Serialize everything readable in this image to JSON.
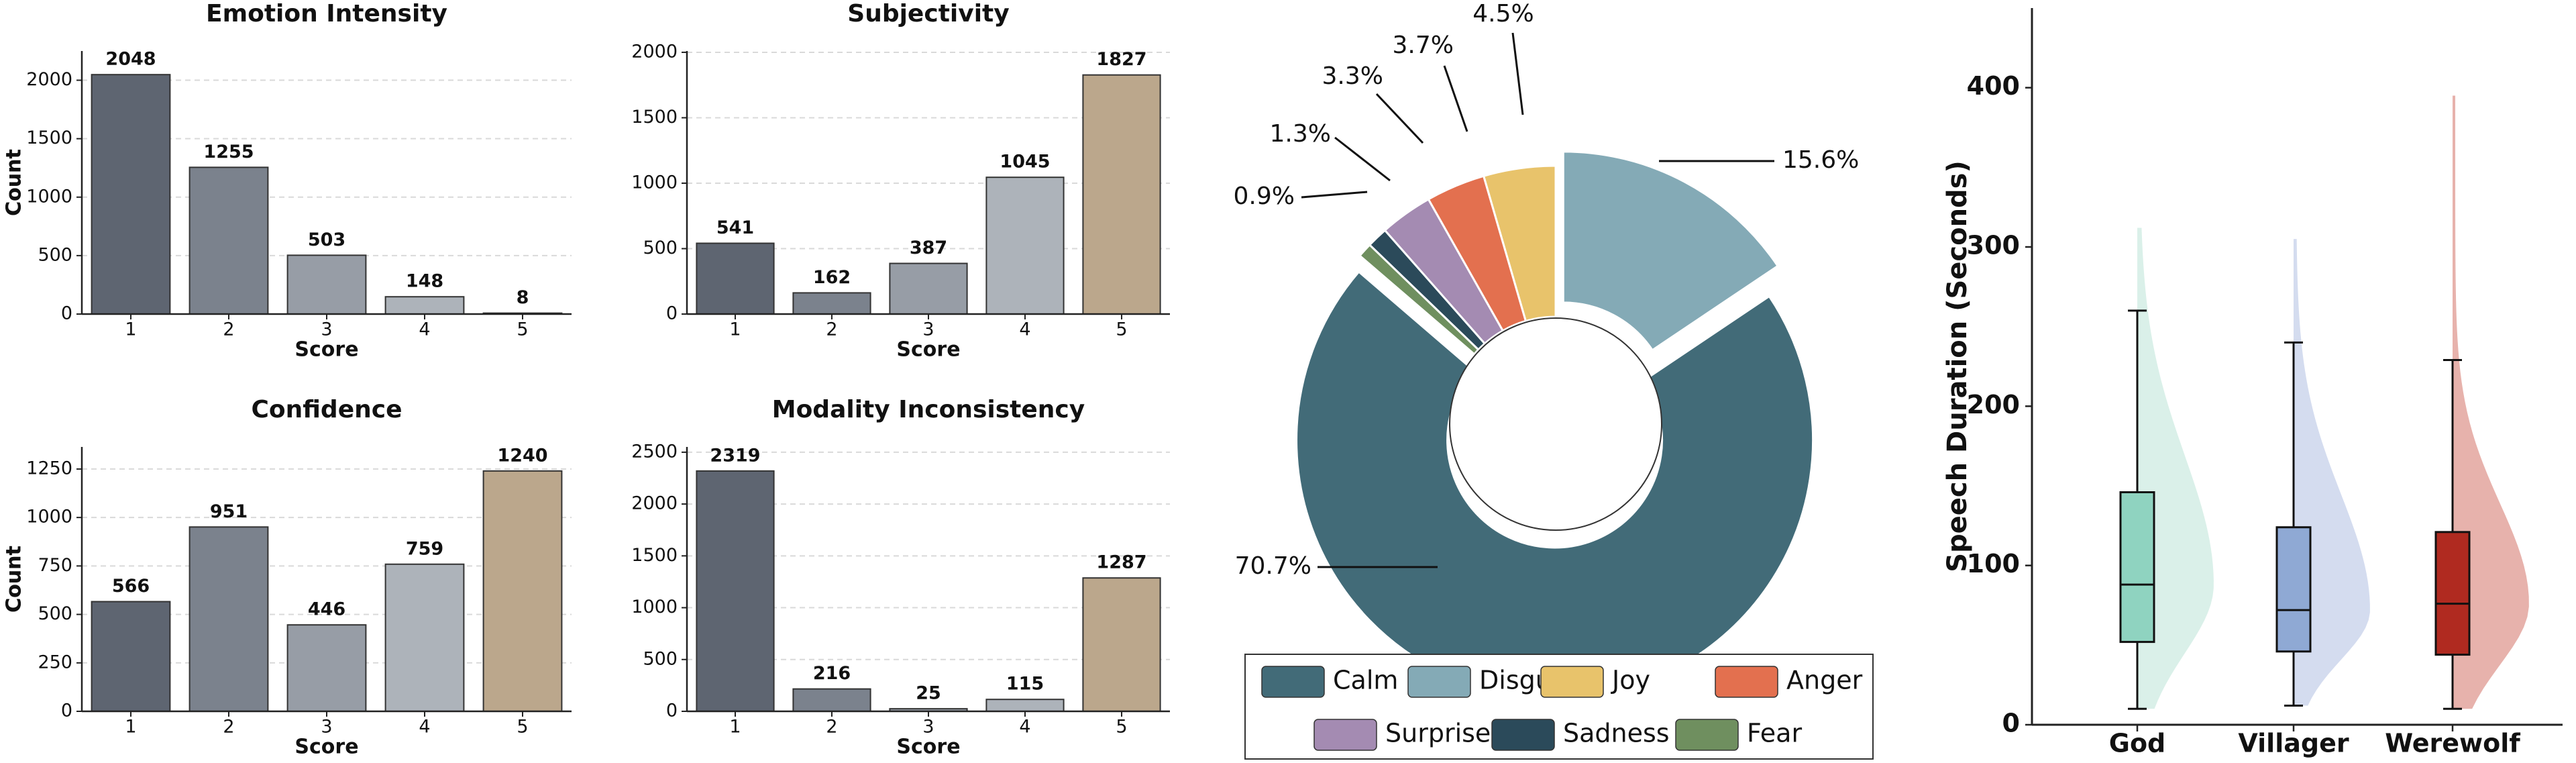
{
  "chart_data": [
    {
      "type": "bar",
      "title": "Emotion Intensity",
      "xlabel": "Score",
      "ylabel": "Count",
      "categories": [
        "1",
        "2",
        "3",
        "4",
        "5"
      ],
      "values": [
        2048,
        1255,
        503,
        148,
        8
      ],
      "colors": [
        "#5e6571",
        "#7b828d",
        "#979da6",
        "#adb3ba",
        "#bba78c"
      ],
      "ylim": [
        0,
        2250
      ],
      "yticks": [
        0,
        500,
        1000,
        1500,
        2000
      ],
      "grid": true
    },
    {
      "type": "bar",
      "title": "Subjectivity",
      "xlabel": "Score",
      "ylabel": "Count",
      "categories": [
        "1",
        "2",
        "3",
        "4",
        "5"
      ],
      "values": [
        541,
        162,
        387,
        1045,
        1827
      ],
      "colors": [
        "#5e6571",
        "#7b828d",
        "#979da6",
        "#adb3ba",
        "#bba78c"
      ],
      "ylim": [
        0,
        2010
      ],
      "yticks": [
        0,
        500,
        1000,
        1500,
        2000
      ],
      "grid": true
    },
    {
      "type": "bar",
      "title": "Confidence",
      "xlabel": "Score",
      "ylabel": "Count",
      "categories": [
        "1",
        "2",
        "3",
        "4",
        "5"
      ],
      "values": [
        566,
        951,
        446,
        759,
        1240
      ],
      "colors": [
        "#5e6571",
        "#7b828d",
        "#979da6",
        "#adb3ba",
        "#bba78c"
      ],
      "ylim": [
        0,
        1364
      ],
      "yticks": [
        0,
        250,
        500,
        750,
        1000,
        1250
      ],
      "grid": true
    },
    {
      "type": "bar",
      "title": "Modality Inconsistency",
      "xlabel": "Score",
      "ylabel": "Count",
      "categories": [
        "1",
        "2",
        "3",
        "4",
        "5"
      ],
      "values": [
        2319,
        216,
        25,
        115,
        1287
      ],
      "colors": [
        "#5e6571",
        "#7b828d",
        "#979da6",
        "#adb3ba",
        "#bba78c"
      ],
      "ylim": [
        0,
        2551
      ],
      "yticks": [
        0,
        500,
        1000,
        1500,
        2000,
        2500
      ],
      "grid": true
    },
    {
      "type": "pie",
      "categories": [
        "Calm",
        "Disgust",
        "Joy",
        "Anger",
        "Surprise",
        "Sadness",
        "Fear"
      ],
      "values": [
        70.7,
        15.6,
        4.5,
        3.7,
        3.3,
        1.3,
        0.9
      ],
      "value_labels": [
        "70.7%",
        "15.6%",
        "4.5%",
        "3.7%",
        "3.3%",
        "1.3%",
        "0.9%"
      ],
      "colors": [
        "#426b78",
        "#84aab6",
        "#e8c36b",
        "#e3704f",
        "#a48bb2",
        "#2b4a5a",
        "#6f8f5f"
      ],
      "legend": true
    },
    {
      "type": "box",
      "ylabel": "Speech Duration (Seconds)",
      "categories": [
        "God",
        "Villager",
        "Werewolf"
      ],
      "boxes": [
        {
          "low": 10,
          "q1": 52,
          "median": 88,
          "q3": 146,
          "high": 260,
          "max": 312
        },
        {
          "low": 12,
          "q1": 46,
          "median": 72,
          "q3": 124,
          "high": 240,
          "max": 305
        },
        {
          "low": 10,
          "q1": 44,
          "median": 76,
          "q3": 121,
          "high": 229,
          "max": 395
        }
      ],
      "colors": [
        "#8fd3c0",
        "#8fa9d4",
        "#b02a20"
      ],
      "violin_colors": [
        "#d3ede5",
        "#ccd6ec",
        "#e3a59e"
      ],
      "ylim": [
        0,
        450
      ],
      "yticks": [
        0,
        100,
        200,
        300,
        400
      ]
    }
  ]
}
